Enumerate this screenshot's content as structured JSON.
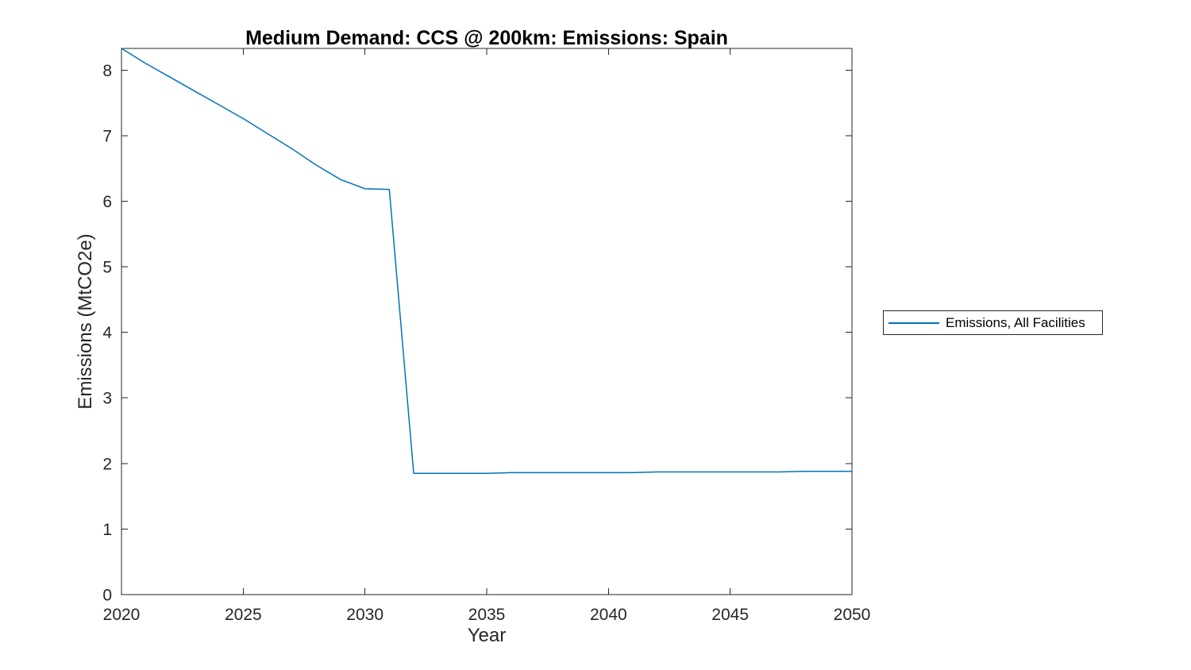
{
  "chart_data": {
    "type": "line",
    "title": "Medium Demand: CCS @ 200km: Emissions: Spain",
    "xlabel": "Year",
    "ylabel": "Emissions (MtCO2e)",
    "xlim": [
      2020,
      2050
    ],
    "ylim": [
      0,
      8.33
    ],
    "x_ticks": [
      2020,
      2025,
      2030,
      2035,
      2040,
      2045,
      2050
    ],
    "y_ticks": [
      0,
      1,
      2,
      3,
      4,
      5,
      6,
      7,
      8
    ],
    "grid": false,
    "box": true,
    "axis_color": "#262626",
    "legend": {
      "position": "outside-right",
      "entries": [
        "Emissions, All Facilities"
      ]
    },
    "series": [
      {
        "name": "Emissions, All Facilities",
        "color": "#0072BD",
        "x": [
          2020,
          2021,
          2022,
          2023,
          2024,
          2025,
          2026,
          2027,
          2028,
          2029,
          2030,
          2031,
          2032,
          2033,
          2034,
          2035,
          2036,
          2037,
          2038,
          2039,
          2040,
          2041,
          2042,
          2043,
          2044,
          2045,
          2046,
          2047,
          2048,
          2049,
          2050
        ],
        "values": [
          8.33,
          8.1,
          7.89,
          7.68,
          7.47,
          7.26,
          7.03,
          6.8,
          6.55,
          6.33,
          6.19,
          6.18,
          1.85,
          1.85,
          1.85,
          1.85,
          1.86,
          1.86,
          1.86,
          1.86,
          1.86,
          1.86,
          1.87,
          1.87,
          1.87,
          1.87,
          1.87,
          1.87,
          1.88,
          1.88,
          1.88
        ]
      }
    ]
  }
}
